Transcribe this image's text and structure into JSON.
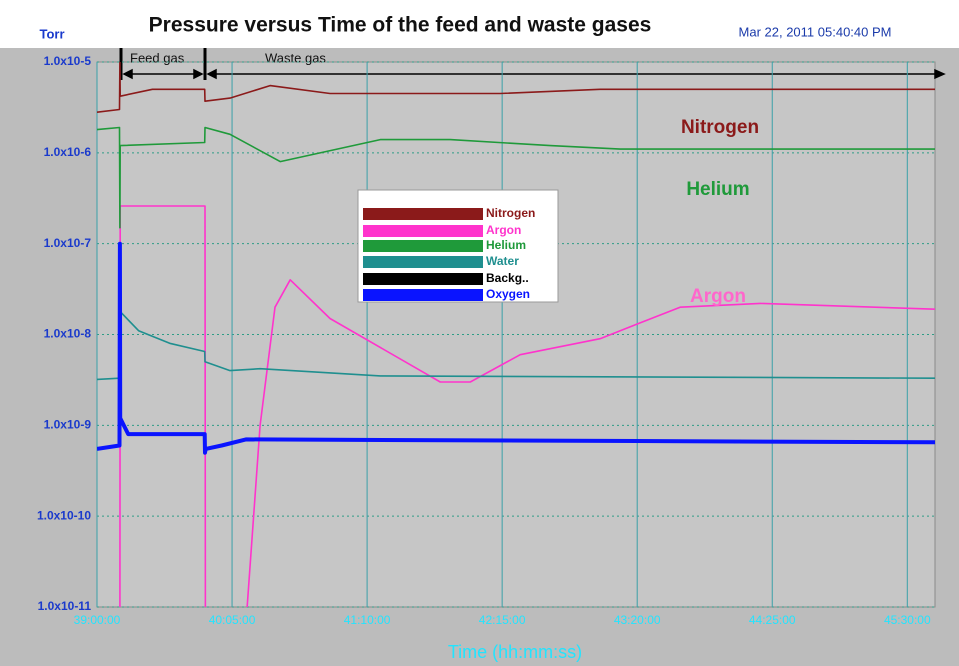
{
  "chart_data": {
    "type": "line",
    "title": "Pressure versus Time of the feed and waste gases",
    "ylabel": "Torr",
    "timestamp": "Mar 22, 2011  05:40:40 PM",
    "xlabel": "Time (hh:mm:ss)",
    "annotations": [
      "Feed gas",
      "Waste gas",
      "Nitrogen",
      "Helium",
      "Argon"
    ],
    "log_scale": true,
    "grid": true,
    "ylim": [
      1e-11,
      1e-05
    ],
    "yticks": [
      {
        "value": 1e-05,
        "label": "1.0x10-5"
      },
      {
        "value": 1e-06,
        "label": "1.0x10-6"
      },
      {
        "value": 1e-07,
        "label": "1.0x10-7"
      },
      {
        "value": 1e-08,
        "label": "1.0x10-8"
      },
      {
        "value": 1e-09,
        "label": "1.0x10-9"
      },
      {
        "value": 1e-10,
        "label": "1.0x10-10"
      },
      {
        "value": 1e-11,
        "label": "1.0x10-11"
      }
    ],
    "xlim": [
      140400,
      164600
    ],
    "xticks": [
      {
        "value": 140400,
        "label": "39:00:00"
      },
      {
        "value": 144300,
        "label": "40:05:00"
      },
      {
        "value": 148200,
        "label": "41:10:00"
      },
      {
        "value": 152100,
        "label": "42:15:00"
      },
      {
        "value": 156000,
        "label": "43:20:00"
      },
      {
        "value": 159900,
        "label": "44:25:00"
      },
      {
        "value": 163800,
        "label": "45:30:00"
      }
    ],
    "series": [
      {
        "name": "Nitrogen",
        "color": "#8b1a1a",
        "x": [
          140400,
          141050,
          141060,
          141070,
          142000,
          143510,
          143520,
          144240,
          145400,
          147130,
          152040,
          154930,
          164600
        ],
        "values": [
          2.8e-06,
          3e-06,
          1e-05,
          4.2e-06,
          5e-06,
          5e-06,
          3.7e-06,
          4e-06,
          5.5e-06,
          4.5e-06,
          4.5e-06,
          5e-06,
          5e-06
        ]
      },
      {
        "name": "Argon",
        "color": "#ff33cc",
        "x": [
          141060,
          141070,
          143520,
          143530,
          144680,
          145110,
          145540,
          145980,
          147130,
          150310,
          151180,
          152620,
          154930,
          155510,
          157240,
          159550,
          164600
        ],
        "values": [
          5e-12,
          2.6e-07,
          2.6e-07,
          5e-12,
          5e-12,
          1e-09,
          2e-08,
          4e-08,
          1.5e-08,
          3e-09,
          3e-09,
          6e-09,
          9e-09,
          1.1e-08,
          2e-08,
          2.2e-08,
          1.9e-08
        ]
      },
      {
        "name": "Helium",
        "color": "#1f9a3a",
        "x": [
          140400,
          141050,
          141060,
          141070,
          143510,
          143520,
          144240,
          145690,
          148580,
          150600,
          153490,
          155510,
          164600
        ],
        "values": [
          1.8e-06,
          1.9e-06,
          1.5e-07,
          1.2e-06,
          1.3e-06,
          1.9e-06,
          1.6e-06,
          8e-07,
          1.4e-06,
          1.4e-06,
          1.2e-06,
          1.1e-06,
          1.1e-06
        ]
      },
      {
        "name": "Water",
        "color": "#1f8f8f",
        "x": [
          140400,
          141050,
          141060,
          141600,
          142500,
          143510,
          143520,
          144240,
          145110,
          148580,
          164600
        ],
        "values": [
          3.2e-09,
          3.3e-09,
          1.8e-08,
          1.1e-08,
          8e-09,
          6.5e-09,
          5e-09,
          4e-09,
          4.2e-09,
          3.5e-09,
          3.3e-09
        ]
      },
      {
        "name": "Backg..",
        "color": "#000000",
        "x": [],
        "values": []
      },
      {
        "name": "Oxygen",
        "color": "#0a14ff",
        "x": [
          140400,
          141050,
          141060,
          141070,
          141300,
          143510,
          143520,
          143540,
          144000,
          144700,
          164600
        ],
        "values": [
          5.5e-10,
          6e-10,
          1e-07,
          1.2e-09,
          8e-10,
          8e-10,
          5e-10,
          5.5e-10,
          6e-10,
          7e-10,
          6.5e-10
        ]
      }
    ]
  }
}
